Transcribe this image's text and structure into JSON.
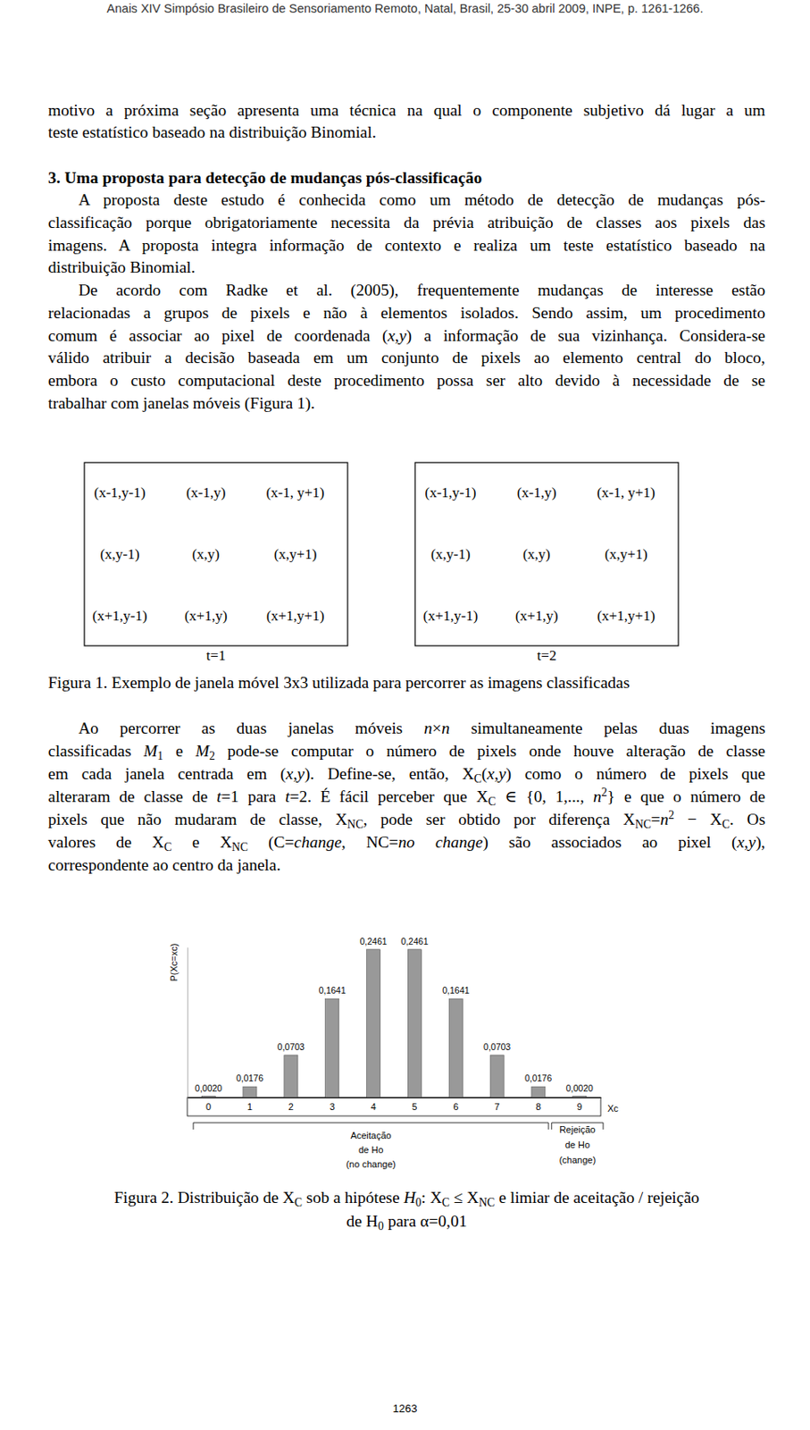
{
  "header": "Anais XIV Simpósio Brasileiro de Sensoriamento Remoto, Natal, Brasil, 25-30 abril 2009, INPE, p. 1261-1266.",
  "intro": {
    "lines": [
      "motivo a próxima seção apresenta uma técnica na qual o componente subjetivo dá lugar a um",
      "teste estatístico baseado na distribuição Binomial."
    ]
  },
  "section_title": "3. Uma proposta para detecção de mudanças pós-classificação",
  "paragraphs": [
    {
      "lines": [
        "A proposta deste estudo é conhecida como um método de detecção de mudanças pós-",
        "classificação porque obrigatoriamente necessita da prévia atribuição de classes aos pixels das",
        "imagens. A proposta integra informação de contexto e realiza um teste estatístico baseado na",
        "distribuição Binomial."
      ]
    },
    {
      "lines": [
        "De acordo com Radke et al. (2005), frequentemente mudanças de interesse estão",
        "relacionadas a grupos de pixels e não à elementos isolados. Sendo assim, um procedimento",
        [
          "comum é associar ao pixel de coordenada (",
          {
            "text": "x",
            "style": "i"
          },
          ",",
          {
            "text": "y",
            "style": "i"
          },
          ") a informação de sua vizinhança. Considera-se"
        ],
        "válido atribuir a decisão baseada em um conjunto de pixels ao elemento central do bloco,",
        "embora o custo computacional deste procedimento possa ser alto devido à necessidade de se",
        "trabalhar com janelas móveis (Figura 1)."
      ]
    }
  ],
  "figure1": {
    "windows": [
      {
        "label": "t=1",
        "cells": [
          [
            "(x-1,y-1)",
            "(x-1,y)",
            "(x-1, y+1)"
          ],
          [
            "(x,y-1)",
            "(x,y)",
            "(x,y+1)"
          ],
          [
            "(x+1,y-1)",
            "(x+1,y)",
            "(x+1,y+1)"
          ]
        ]
      },
      {
        "label": "t=2",
        "cells": [
          [
            "(x-1,y-1)",
            "(x-1,y)",
            "(x-1, y+1)"
          ],
          [
            "(x,y-1)",
            "(x,y)",
            "(x,y+1)"
          ],
          [
            "(x+1,y-1)",
            "(x+1,y)",
            "(x+1,y+1)"
          ]
        ]
      }
    ],
    "caption": "Figura 1. Exemplo de janela móvel 3x3 utilizada para percorrer as imagens classificadas"
  },
  "paragraph_after": {
    "lines": [
      [
        "Ao percorrer as duas janelas móveis ",
        {
          "text": "n",
          "style": "i"
        },
        "×",
        {
          "text": "n",
          "style": "i"
        },
        " simultaneamente pelas duas imagens"
      ],
      [
        "classificadas ",
        {
          "text": "M",
          "style": "i"
        },
        {
          "text": "1",
          "style": "sub"
        },
        " e ",
        {
          "text": "M",
          "style": "i"
        },
        {
          "text": "2",
          "style": "sub"
        },
        " pode-se computar o número de pixels onde houve alteração de classe"
      ],
      [
        "em cada janela centrada em (",
        {
          "text": "x",
          "style": "i"
        },
        ",",
        {
          "text": "y",
          "style": "i"
        },
        "). Define-se, então, X",
        {
          "text": "C",
          "style": "sub"
        },
        "(",
        {
          "text": "x",
          "style": "i"
        },
        ",",
        {
          "text": "y",
          "style": "i"
        },
        ") como o número de pixels que"
      ],
      [
        "alteraram de classe de ",
        {
          "text": "t",
          "style": "i"
        },
        "=1 para ",
        {
          "text": "t",
          "style": "i"
        },
        "=2. É fácil perceber que X",
        {
          "text": "C",
          "style": "sub"
        },
        " ∈ {0, 1,..., ",
        {
          "text": "n",
          "style": "i"
        },
        {
          "text": "2",
          "style": "sup"
        },
        "} e que o número de"
      ],
      [
        "pixels que não mudaram de classe, X",
        {
          "text": "NC",
          "style": "sub"
        },
        ", pode ser obtido por diferença X",
        {
          "text": "NC",
          "style": "sub"
        },
        "=",
        {
          "text": "n",
          "style": "i"
        },
        {
          "text": "2",
          "style": "sup"
        },
        " − X",
        {
          "text": "C",
          "style": "sub"
        },
        ". Os"
      ],
      [
        "valores de X",
        {
          "text": "C",
          "style": "sub"
        },
        " e X",
        {
          "text": "NC",
          "style": "sub"
        },
        " (C=",
        {
          "text": "change",
          "style": "i"
        },
        ", NC=",
        {
          "text": "no change",
          "style": "i"
        },
        ") são associados ao pixel (",
        {
          "text": "x",
          "style": "i"
        },
        ",",
        {
          "text": "y",
          "style": "i"
        },
        "),"
      ],
      "correspondente ao centro da janela."
    ]
  },
  "chart_data": {
    "type": "bar",
    "ylabel": "P(Xc=xc)",
    "xlabel": "Xc",
    "categories": [
      "0",
      "1",
      "2",
      "3",
      "4",
      "5",
      "6",
      "7",
      "8",
      "9"
    ],
    "values": [
      0.002,
      0.0176,
      0.0703,
      0.1641,
      0.2461,
      0.2461,
      0.1641,
      0.0703,
      0.0176,
      0.002
    ],
    "value_labels": [
      "0,0020",
      "0,0176",
      "0,0703",
      "0,1641",
      "0,2461",
      "0,2461",
      "0,1641",
      "0,0703",
      "0,0176",
      "0,0020"
    ],
    "data_labels": true,
    "color": "#999999",
    "ylim": [
      0,
      0.25
    ],
    "tick_labels": "x",
    "annotations": [
      [
        "Aceitação",
        "de Ho",
        "(no change)"
      ],
      [
        "Rejeição",
        "de Ho",
        "(change)"
      ]
    ]
  },
  "figure2_caption": {
    "lines": [
      [
        "Figura 2. Distribuição de X",
        {
          "text": "C",
          "style": "sub"
        },
        " sob a hipótese ",
        {
          "text": "H",
          "style": "i"
        },
        {
          "text": "0",
          "style": "sub"
        },
        ": X",
        {
          "text": "C",
          "style": "sub"
        },
        " ≤ X",
        {
          "text": "NC",
          "style": "sub"
        },
        " e limiar de aceitação / rejeição"
      ],
      [
        "de H",
        {
          "text": "0",
          "style": "sub"
        },
        " para α=0,01"
      ]
    ]
  },
  "page_number": "1263"
}
